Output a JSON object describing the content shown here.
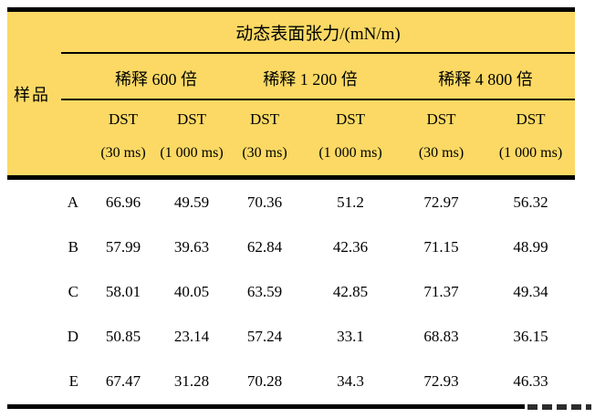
{
  "table": {
    "title": "动态表面张力/(mN/m)",
    "sample_header": "样品",
    "groups": [
      "稀释 600 倍",
      "稀释 1 200 倍",
      "稀释 4 800 倍"
    ],
    "columns": [
      {
        "line1": "DST",
        "line2": "(30 ms)"
      },
      {
        "line1": "DST",
        "line2": "(1 000 ms)"
      },
      {
        "line1": "DST",
        "line2": "(30 ms)"
      },
      {
        "line1": "DST",
        "line2": "(1 000 ms)"
      },
      {
        "line1": "DST",
        "line2": "(30 ms)"
      },
      {
        "line1": "DST",
        "line2": "(1 000 ms)"
      }
    ],
    "rows": [
      {
        "sample": "A",
        "values": [
          "66.96",
          "49.59",
          "70.36",
          "51.2",
          "72.97",
          "56.32"
        ]
      },
      {
        "sample": "B",
        "values": [
          "57.99",
          "39.63",
          "62.84",
          "42.36",
          "71.15",
          "48.99"
        ]
      },
      {
        "sample": "C",
        "values": [
          "58.01",
          "40.05",
          "63.59",
          "42.85",
          "71.37",
          "49.34"
        ]
      },
      {
        "sample": "D",
        "values": [
          "50.85",
          "23.14",
          "57.24",
          "33.1",
          "68.83",
          "36.15"
        ]
      },
      {
        "sample": "E",
        "values": [
          "67.47",
          "31.28",
          "70.28",
          "34.3",
          "72.93",
          "46.33"
        ]
      }
    ],
    "colors": {
      "header_bg": "#FBD964",
      "rule": "#000000",
      "text": "#000000"
    }
  },
  "chart_data": {
    "type": "table",
    "title": "动态表面张力/(mN/m)",
    "row_header": "样品",
    "column_groups": [
      "稀释 600 倍",
      "稀释 1 200 倍",
      "稀释 4 800 倍"
    ],
    "columns": [
      "DST (30 ms)",
      "DST (1 000 ms)",
      "DST (30 ms)",
      "DST (1 000 ms)",
      "DST (30 ms)",
      "DST (1 000 ms)"
    ],
    "rows": [
      [
        "A",
        66.96,
        49.59,
        70.36,
        51.2,
        72.97,
        56.32
      ],
      [
        "B",
        57.99,
        39.63,
        62.84,
        42.36,
        71.15,
        48.99
      ],
      [
        "C",
        58.01,
        40.05,
        63.59,
        42.85,
        71.37,
        49.34
      ],
      [
        "D",
        50.85,
        23.14,
        57.24,
        33.1,
        68.83,
        36.15
      ],
      [
        "E",
        67.47,
        31.28,
        70.28,
        34.3,
        72.93,
        46.33
      ]
    ]
  }
}
